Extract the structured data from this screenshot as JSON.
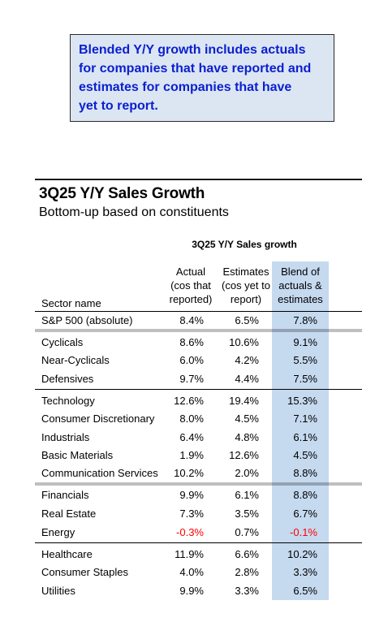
{
  "callout": {
    "lines": [
      "Blended Y/Y growth includes actuals",
      "for companies that have reported and",
      "estimates for companies that have",
      "yet to report."
    ]
  },
  "header": {
    "title": "3Q25 Y/Y Sales Growth",
    "subtitle": "Bottom-up based on constituents"
  },
  "table": {
    "title": "3Q25 Y/Y Sales growth",
    "columns": {
      "sector": "Sector name",
      "actual": [
        "Actual",
        "(cos that",
        "reported)"
      ],
      "estimates": [
        "Estimates",
        "(cos yet to",
        "report)"
      ],
      "blend": [
        "Blend of",
        "actuals &",
        "estimates"
      ]
    },
    "rows": [
      {
        "sector": "S&P 500 (absolute)",
        "actual": "8.4%",
        "estimates": "6.5%",
        "blend": "7.8%"
      },
      {
        "sector": "Cyclicals",
        "actual": "8.6%",
        "estimates": "10.6%",
        "blend": "9.1%"
      },
      {
        "sector": "Near-Cyclicals",
        "actual": "6.0%",
        "estimates": "4.2%",
        "blend": "5.5%"
      },
      {
        "sector": "Defensives",
        "actual": "9.7%",
        "estimates": "4.4%",
        "blend": "7.5%"
      },
      {
        "sector": "Technology",
        "actual": "12.6%",
        "estimates": "19.4%",
        "blend": "15.3%"
      },
      {
        "sector": "Consumer Discretionary",
        "actual": "8.0%",
        "estimates": "4.5%",
        "blend": "7.1%"
      },
      {
        "sector": "Industrials",
        "actual": "6.4%",
        "estimates": "4.8%",
        "blend": "6.1%"
      },
      {
        "sector": "Basic Materials",
        "actual": "1.9%",
        "estimates": "12.6%",
        "blend": "4.5%"
      },
      {
        "sector": "Communication Services",
        "actual": "10.2%",
        "estimates": "2.0%",
        "blend": "8.8%"
      },
      {
        "sector": "Financials",
        "actual": "9.9%",
        "estimates": "6.1%",
        "blend": "8.8%"
      },
      {
        "sector": "Real Estate",
        "actual": "7.3%",
        "estimates": "3.5%",
        "blend": "6.7%"
      },
      {
        "sector": "Energy",
        "actual": "-0.3%",
        "estimates": "0.7%",
        "blend": "-0.1%"
      },
      {
        "sector": "Healthcare",
        "actual": "11.9%",
        "estimates": "6.6%",
        "blend": "10.2%"
      },
      {
        "sector": "Consumer Staples",
        "actual": "4.0%",
        "estimates": "2.8%",
        "blend": "3.3%"
      },
      {
        "sector": "Utilities",
        "actual": "9.9%",
        "estimates": "3.3%",
        "blend": "6.5%"
      }
    ]
  },
  "colors": {
    "callout_text": "#0a1fd0",
    "callout_bg": "#dce6f2",
    "blend_band": "#c5d9ef",
    "negative": "#ff0000"
  }
}
